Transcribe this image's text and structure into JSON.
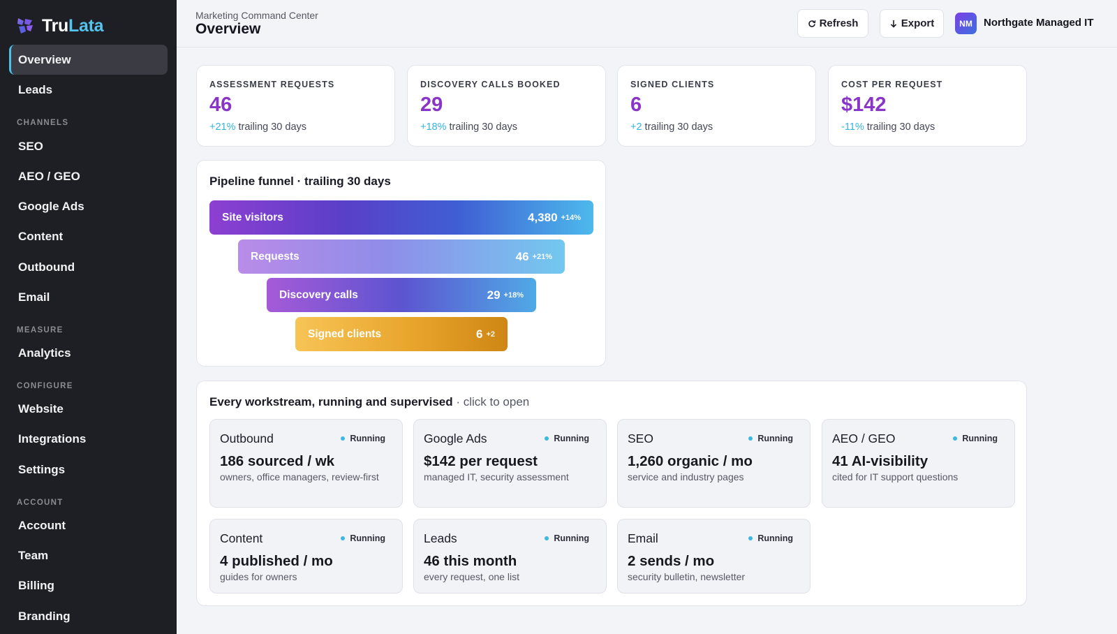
{
  "brand": {
    "name_part1": "Tru",
    "name_part2": "Lata",
    "icon": "brand-logo-icon"
  },
  "sidebar": {
    "items": [
      {
        "label": "Overview",
        "active": true
      },
      {
        "label": "Leads"
      }
    ],
    "sections": [
      {
        "heading": "CHANNELS",
        "items": [
          "SEO",
          "AEO / GEO",
          "Google Ads",
          "Content",
          "Outbound",
          "Email"
        ]
      },
      {
        "heading": "MEASURE",
        "items": [
          "Analytics"
        ]
      },
      {
        "heading": "CONFIGURE",
        "items": [
          "Website",
          "Integrations",
          "Settings"
        ]
      },
      {
        "heading": "ACCOUNT",
        "items": [
          "Account",
          "Team",
          "Billing",
          "Branding"
        ]
      }
    ]
  },
  "header": {
    "breadcrumb": "Marketing Command Center",
    "title": "Overview",
    "refresh_label": "Refresh",
    "refresh_icon": "refresh-icon",
    "export_label": "Export",
    "export_icon": "arrow-down-icon",
    "avatar_initials": "NM",
    "org_name": "Northgate Managed IT"
  },
  "stats": [
    {
      "label": "ASSESSMENT REQUESTS",
      "value": "46",
      "delta": "+21%",
      "period": "trailing 30 days"
    },
    {
      "label": "DISCOVERY CALLS BOOKED",
      "value": "29",
      "delta": "+18%",
      "period": "trailing 30 days"
    },
    {
      "label": "SIGNED CLIENTS",
      "value": "6",
      "delta": "+2",
      "period": "trailing 30 days"
    },
    {
      "label": "COST PER REQUEST",
      "value": "$142",
      "delta": "-11%",
      "period": "trailing 30 days"
    }
  ],
  "funnel": {
    "title": "Pipeline funnel · trailing 30 days",
    "stages": [
      {
        "label": "Site visitors",
        "value": "4,380",
        "delta": "+14%"
      },
      {
        "label": "Requests",
        "value": "46",
        "delta": "+21%"
      },
      {
        "label": "Discovery calls",
        "value": "29",
        "delta": "+18%"
      },
      {
        "label": "Signed clients",
        "value": "6",
        "delta": "+2"
      }
    ]
  },
  "workstreams": {
    "title": "Every workstream, running and supervised",
    "hint": " · click to open",
    "tiles": [
      {
        "name": "Outbound",
        "status": "Running",
        "metric": "186 sourced / wk",
        "desc": "owners, office managers, review-first"
      },
      {
        "name": "Google Ads",
        "status": "Running",
        "metric": "$142 per request",
        "desc": "managed IT, security assessment"
      },
      {
        "name": "SEO",
        "status": "Running",
        "metric": "1,260 organic / mo",
        "desc": "service and industry pages"
      },
      {
        "name": "AEO / GEO",
        "status": "Running",
        "metric": "41 AI-visibility",
        "desc": "cited for IT support questions"
      },
      {
        "name": "Content",
        "status": "Running",
        "metric": "4 published / mo",
        "desc": "guides for owners"
      },
      {
        "name": "Leads",
        "status": "Running",
        "metric": "46 this month",
        "desc": "every request, one list"
      },
      {
        "name": "Email",
        "status": "Running",
        "metric": "2 sends / mo",
        "desc": "security bulletin, newsletter"
      }
    ]
  },
  "colors": {
    "accent": "#8a35c9",
    "delta": "#36b5de",
    "sidebar_bg": "#1e1f24",
    "active_indicator": "#4cc0e8"
  }
}
